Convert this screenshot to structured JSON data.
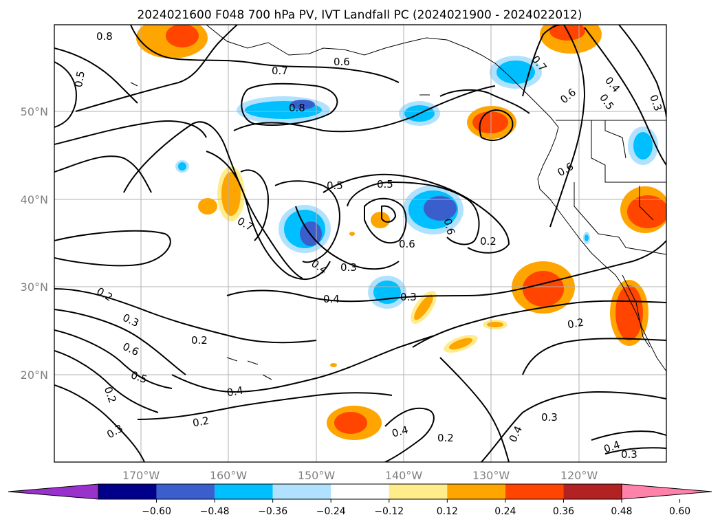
{
  "title": "2024021600 F048 700 hPa PV, IVT Landfall PC (2024021900 - 2024022012)",
  "lon_labels": [
    "170°W",
    "160°W",
    "150°W",
    "140°W",
    "130°W",
    "120°W"
  ],
  "lat_labels": [
    "50°N",
    "40°N",
    "30°N",
    "20°N"
  ],
  "contour_labels": [
    "0.8",
    "0.7",
    "0.6",
    "0.5",
    "0.8",
    "0.5",
    "0.5",
    "0.7",
    "0.4",
    "0.3",
    "0.6",
    "0.2",
    "0.4",
    "0.3",
    "0.2",
    "0.3",
    "0.6",
    "0.5",
    "0.2",
    "0.2",
    "0.4",
    "0.2",
    "0.3",
    "0.4",
    "0.2",
    "0.4",
    "0.3",
    "0.4",
    "0.3",
    "0.2",
    "0.6",
    "0.6",
    "0.4",
    "0.5",
    "0.3",
    "0.7",
    "0.6"
  ],
  "colorbar": {
    "colors": [
      "#9932cc",
      "#00008b",
      "#3a5fcd",
      "#00bfff",
      "#b0e2ff",
      "#ffffff",
      "#ffec8b",
      "#ffa500",
      "#ff4500",
      "#b22222",
      "#ff82ab"
    ],
    "tick_labels": [
      "−0.60",
      "−0.48",
      "−0.36",
      "−0.24",
      "−0.12",
      "0.12",
      "0.24",
      "0.36",
      "0.48",
      "0.60"
    ]
  }
}
